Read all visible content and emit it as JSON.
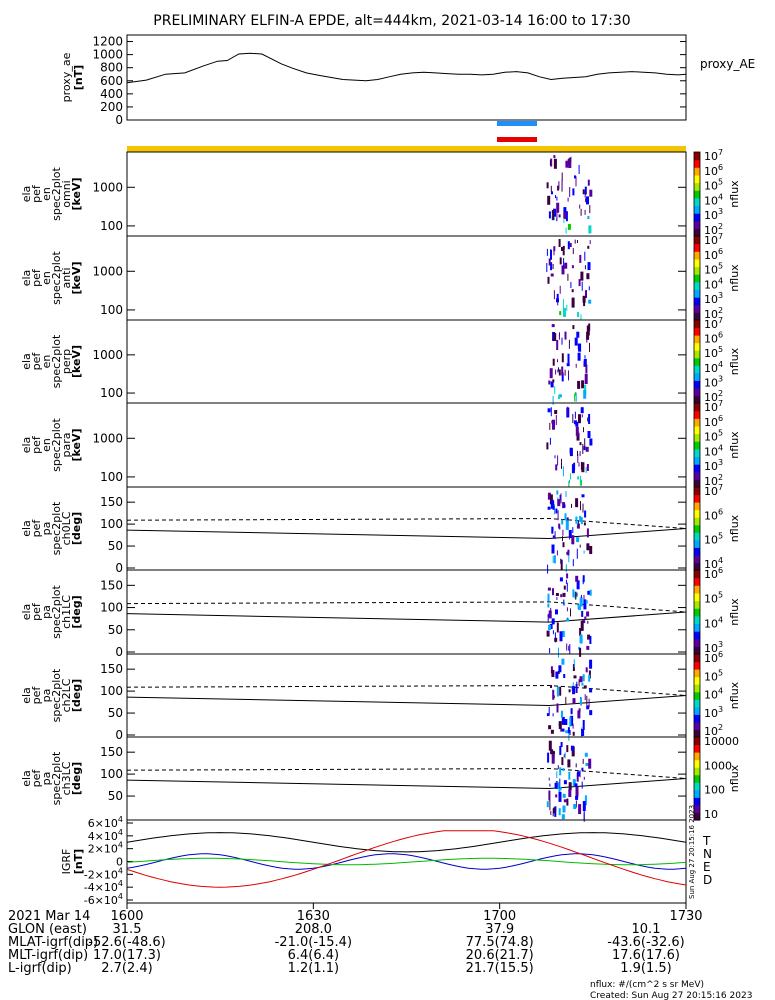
{
  "title": "PRELIMINARY ELFIN-A EPDE, alt=444km, 2021-03-14 16:00 to 17:30",
  "chart_data": {
    "type": "line",
    "x_range": [
      "16:00",
      "17:30"
    ],
    "panels": [
      {
        "id": "proxy_ae",
        "type": "line",
        "ylabel": [
          "proxy_ae",
          "[nT]"
        ],
        "yticks": [
          "0",
          "200",
          "400",
          "600",
          "800",
          "1000",
          "1200"
        ],
        "ylim": [
          0,
          1300
        ],
        "series": [
          {
            "name": "proxy_AE",
            "x_min": [
              0,
              10,
              20,
              30,
              40,
              47,
              52,
              58,
              64,
              70,
              80,
              86,
              93,
              100,
              106,
              112,
              118,
              124,
              130,
              136,
              142,
              148,
              154,
              160,
              166,
              172,
              178,
              184,
              190,
              196,
              202,
              208,
              214,
              220,
              226,
              232,
              238,
              244,
              250,
              256,
              262,
              268,
              274,
              280,
              286,
              290
            ],
            "values": [
              570,
              610,
              700,
              720,
              830,
              900,
              910,
              1010,
              1020,
              1010,
              860,
              790,
              720,
              680,
              650,
              620,
              610,
              600,
              620,
              660,
              700,
              720,
              730,
              720,
              710,
              700,
              700,
              690,
              700,
              730,
              740,
              720,
              660,
              620,
              640,
              650,
              660,
              700,
              720,
              730,
              740,
              730,
              720,
              700,
              690,
              700
            ]
          }
        ]
      },
      {
        "id": "en_omni",
        "type": "heatmap",
        "ylabel": [
          "ela",
          "pef",
          "en",
          "spec2plot",
          "omni",
          "[keV]"
        ],
        "yticks": [
          "100",
          "1000"
        ],
        "zlabel": "nflux",
        "zticks": [
          "10^2",
          "10^3",
          "10^4",
          "10^5",
          "10^6",
          "10^7"
        ]
      },
      {
        "id": "en_anti",
        "type": "heatmap",
        "ylabel": [
          "ela",
          "pef",
          "en",
          "spec2plot",
          "anti",
          "[keV]"
        ],
        "yticks": [
          "100",
          "1000"
        ],
        "zlabel": "nflux",
        "zticks": [
          "10^2",
          "10^3",
          "10^4",
          "10^5",
          "10^6",
          "10^7"
        ]
      },
      {
        "id": "en_perp",
        "type": "heatmap",
        "ylabel": [
          "ela",
          "pef",
          "en",
          "spec2plot",
          "perp",
          "[keV]"
        ],
        "yticks": [
          "100",
          "1000"
        ],
        "zlabel": "nflux",
        "zticks": [
          "10^2",
          "10^3",
          "10^4",
          "10^5",
          "10^6",
          "10^7"
        ]
      },
      {
        "id": "en_para",
        "type": "heatmap",
        "ylabel": [
          "ela",
          "pef",
          "en",
          "spec2plot",
          "para",
          "[keV]"
        ],
        "yticks": [
          "100",
          "1000"
        ],
        "zlabel": "nflux",
        "zticks": [
          "10^2",
          "10^3",
          "10^4",
          "10^5",
          "10^6",
          "10^7"
        ]
      },
      {
        "id": "pa_ch0",
        "type": "heatmap",
        "ylabel": [
          "ela",
          "pef",
          "pa",
          "spec2plot",
          "ch0LC",
          "[deg]"
        ],
        "yticks": [
          "0",
          "50",
          "100",
          "150"
        ],
        "zlabel": "nflux",
        "zticks": [
          "10^4",
          "10^5",
          "10^6",
          "10^7"
        ]
      },
      {
        "id": "pa_ch1",
        "type": "heatmap",
        "ylabel": [
          "ela",
          "pef",
          "pa",
          "spec2plot",
          "ch1LC",
          "[deg]"
        ],
        "yticks": [
          "0",
          "50",
          "100",
          "150"
        ],
        "zlabel": "nflux",
        "zticks": [
          "10^3",
          "10^4",
          "10^5",
          "10^6"
        ]
      },
      {
        "id": "pa_ch2",
        "type": "heatmap",
        "ylabel": [
          "ela",
          "pef",
          "pa",
          "spec2plot",
          "ch2LC",
          "[deg]"
        ],
        "yticks": [
          "0",
          "50",
          "100",
          "150"
        ],
        "zlabel": "nflux",
        "zticks": [
          "10^2",
          "10^3",
          "10^4",
          "10^5",
          "10^6"
        ]
      },
      {
        "id": "pa_ch3",
        "type": "heatmap",
        "ylabel": [
          "ela",
          "pef",
          "pa",
          "spec2plot",
          "ch3LC",
          "[deg]"
        ],
        "yticks": [
          "50",
          "100",
          "150"
        ],
        "zlabel": "nflux",
        "zticks": [
          "10",
          "100",
          "1000",
          "10000"
        ]
      },
      {
        "id": "igrf",
        "type": "line",
        "ylabel": [
          "IGRF",
          "[nT]"
        ],
        "yticks": [
          "-6×10^4",
          "-4×10^4",
          "-2×10^4",
          "0",
          "2×10^4",
          "4×10^4",
          "6×10^4"
        ],
        "ylim": [
          -60000,
          60000
        ],
        "legend": [
          "T",
          "N",
          "E",
          "D"
        ],
        "colors": [
          "#000000",
          "#0000cc",
          "#00bb00",
          "#dd0000"
        ]
      }
    ],
    "colorbar_colors": [
      "#3a003f",
      "#5a00a0",
      "#0000ff",
      "#00aaff",
      "#00d8c8",
      "#00cc00",
      "#a8e800",
      "#ffff00",
      "#ffaa00",
      "#ff0000",
      "#880000"
    ]
  },
  "bottom_table": {
    "date": "2021 Mar 14",
    "times": [
      "1600",
      "1630",
      "1700",
      "1730"
    ],
    "rows": [
      {
        "label": "GLON (east)",
        "values": [
          "31.5",
          "208.0",
          "37.9",
          "10.1"
        ]
      },
      {
        "label": "MLAT-igrf(dip)",
        "values": [
          "-52.6(-48.6)",
          "-21.0(-15.4)",
          "77.5(74.8)",
          "-43.6(-32.6)"
        ]
      },
      {
        "label": "MLT-igrf(dip)",
        "values": [
          "17.0(17.3)",
          "6.4(6.4)",
          "20.6(21.7)",
          "17.6(17.6)"
        ]
      },
      {
        "label": "L-igrf(dip)",
        "values": [
          "2.7(2.4)",
          "1.2(1.1)",
          "21.7(15.5)",
          "1.9(1.5)"
        ]
      }
    ]
  },
  "footer": {
    "units": "nflux: #/(cm^2 s sr MeV)",
    "created": "Created: Sun Aug 27 20:15:16 2023",
    "side_created": "Sun Aug 27 20:15:16 2023"
  }
}
